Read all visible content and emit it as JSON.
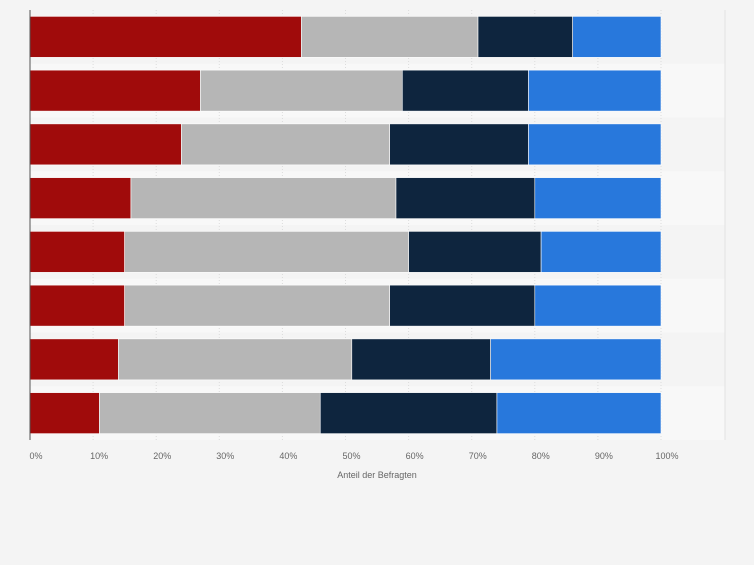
{
  "chart_data": {
    "type": "bar",
    "orientation": "horizontal",
    "stacked": true,
    "categories": [
      "",
      "",
      "",
      "",
      "",
      "",
      "",
      ""
    ],
    "series": [
      {
        "values": [
          43,
          27,
          24,
          16,
          15,
          15,
          14,
          11
        ],
        "color": "#a00b0b"
      },
      {
        "values": [
          28,
          32,
          33,
          42,
          45,
          42,
          37,
          35
        ],
        "color": "#b6b6b6"
      },
      {
        "values": [
          15,
          20,
          22,
          22,
          21,
          23,
          22,
          28
        ],
        "color": "#0e253e"
      },
      {
        "values": [
          14,
          21,
          21,
          20,
          19,
          20,
          27,
          26
        ],
        "color": "#2878dc"
      }
    ],
    "x_ticks": [
      "0%",
      "10%",
      "20%",
      "30%",
      "40%",
      "50%",
      "60%",
      "70%",
      "80%",
      "90%",
      "100%"
    ],
    "xlim": [
      0,
      100
    ],
    "xlabel": "Anteil der Befragten",
    "grid": true,
    "legend": "none"
  }
}
